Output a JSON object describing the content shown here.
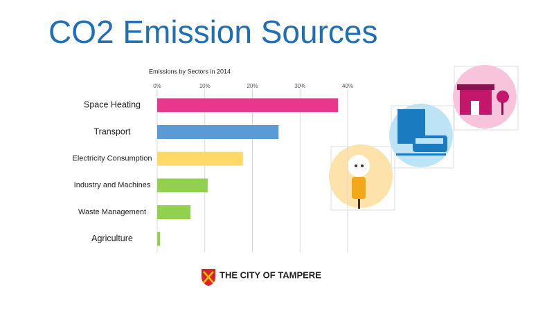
{
  "title": "CO2 Emission Sources",
  "chart_data": {
    "type": "bar",
    "orientation": "horizontal",
    "title": "Emissions by Sectors in 2014",
    "categories": [
      "Space Heating",
      "Transport",
      "Electricity Consumption",
      "Industry and Machines",
      "Waste Management",
      "Agriculture"
    ],
    "values": [
      38,
      25.5,
      18,
      10.6,
      7,
      0.6
    ],
    "colors": [
      "#e8378c",
      "#5b9bd5",
      "#ffd966",
      "#92d050",
      "#92d050",
      "#92d050"
    ],
    "xlim": [
      0,
      40
    ],
    "xticks": [
      {
        "value": 0,
        "label": "0%"
      },
      {
        "value": 10,
        "label": "10%"
      },
      {
        "value": 20,
        "label": "20%"
      },
      {
        "value": 30,
        "label": "30%"
      },
      {
        "value": 40,
        "label": "40%"
      }
    ],
    "grid": true
  },
  "footer": {
    "text": "THE CITY OF TAMPERE"
  }
}
